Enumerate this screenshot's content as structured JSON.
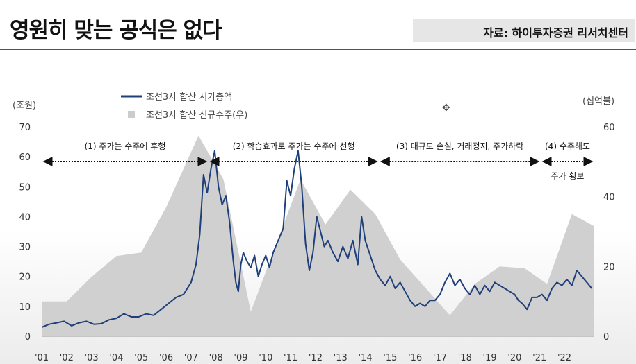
{
  "header": {
    "title": "영원히 맞는 공식은 없다",
    "source": "자료: 하이투자증권 리서치센터"
  },
  "chart_data": {
    "type": "line",
    "left_unit": "(조원)",
    "right_unit": "(십억불)",
    "legend": [
      {
        "name": "조선3사 합산 시가총액",
        "color": "#1f3f7a",
        "kind": "line"
      },
      {
        "name": "조선3사 합산 신규수주(우)",
        "color": "#cccccc",
        "kind": "area"
      }
    ],
    "x_labels": [
      "'01",
      "'02",
      "'03",
      "'04",
      "'05",
      "'06",
      "'07",
      "'08",
      "'09",
      "'10",
      "'11",
      "'12",
      "'13",
      "'14",
      "'15",
      "'16",
      "'17",
      "'18",
      "'19",
      "'20",
      "'21",
      "'22"
    ],
    "y_left_ticks": [
      "0",
      "10",
      "20",
      "30",
      "40",
      "50",
      "60",
      "70"
    ],
    "y_right_ticks": [
      "0",
      "20",
      "40",
      "60"
    ],
    "ylim_left": [
      0,
      70
    ],
    "ylim_right": [
      0,
      60
    ],
    "x_range": [
      2001.0,
      2023.2
    ],
    "area_series": {
      "name": "조선3사 합산 신규수주(우)",
      "x": [
        2001.0,
        2002.0,
        2003.0,
        2004.0,
        2005.0,
        2006.0,
        2007.3,
        2008.3,
        2009.4,
        2010.4,
        2011.4,
        2012.4,
        2013.4,
        2014.4,
        2015.4,
        2016.4,
        2017.4,
        2018.4,
        2019.4,
        2020.4,
        2021.3,
        2022.3,
        2023.2
      ],
      "y": [
        10.0,
        10.0,
        17.0,
        23.0,
        24.0,
        37.0,
        57.5,
        45.0,
        7.0,
        26.0,
        45.0,
        32.0,
        42.0,
        35.0,
        22.0,
        14.0,
        6.0,
        15.0,
        20.0,
        19.5,
        15.0,
        35.0,
        31.5
      ]
    },
    "line_series": {
      "name": "조선3사 합산 시가총액",
      "x": [
        2001.0,
        2001.3,
        2001.6,
        2001.9,
        2002.2,
        2002.5,
        2002.8,
        2003.1,
        2003.4,
        2003.7,
        2004.0,
        2004.3,
        2004.6,
        2004.9,
        2005.2,
        2005.5,
        2005.8,
        2006.1,
        2006.4,
        2006.7,
        2007.0,
        2007.2,
        2007.35,
        2007.5,
        2007.65,
        2007.8,
        2007.95,
        2008.1,
        2008.25,
        2008.4,
        2008.55,
        2008.7,
        2008.8,
        2008.9,
        2009.0,
        2009.1,
        2009.25,
        2009.4,
        2009.55,
        2009.7,
        2009.85,
        2010.0,
        2010.15,
        2010.3,
        2010.5,
        2010.7,
        2010.85,
        2011.0,
        2011.15,
        2011.3,
        2011.45,
        2011.6,
        2011.75,
        2011.9,
        2012.05,
        2012.2,
        2012.35,
        2012.5,
        2012.7,
        2012.9,
        2013.1,
        2013.3,
        2013.5,
        2013.7,
        2013.85,
        2014.0,
        2014.2,
        2014.4,
        2014.6,
        2014.8,
        2015.0,
        2015.2,
        2015.4,
        2015.6,
        2015.8,
        2016.0,
        2016.2,
        2016.4,
        2016.6,
        2016.8,
        2017.0,
        2017.2,
        2017.4,
        2017.6,
        2017.8,
        2018.0,
        2018.2,
        2018.4,
        2018.6,
        2018.8,
        2019.0,
        2019.2,
        2019.4,
        2019.6,
        2019.8,
        2020.0,
        2020.15,
        2020.3,
        2020.5,
        2020.7,
        2020.9,
        2021.1,
        2021.3,
        2021.5,
        2021.7,
        2021.9,
        2022.1,
        2022.3,
        2022.5,
        2022.7,
        2022.9,
        2023.1
      ],
      "y": [
        3,
        4,
        4.5,
        5,
        3.5,
        4.5,
        5,
        4,
        4.2,
        5.5,
        6,
        7.5,
        6.5,
        6.5,
        7.5,
        7,
        9,
        11,
        13,
        14,
        18,
        24,
        34,
        54,
        48,
        56,
        62,
        50,
        44,
        47,
        38,
        25,
        18,
        15,
        24,
        28,
        25,
        23,
        27,
        20,
        24,
        27,
        23,
        28,
        32,
        36,
        52,
        47,
        56,
        62,
        50,
        31,
        22,
        28,
        40,
        35,
        30,
        32,
        28,
        25,
        30,
        26,
        32,
        24,
        40,
        32,
        27,
        22,
        19,
        17,
        20,
        16,
        18,
        15,
        12,
        10,
        11,
        10,
        12,
        12,
        14,
        18,
        21,
        17,
        19,
        16,
        14,
        17,
        14,
        17,
        15,
        18,
        17,
        16,
        15,
        14,
        12,
        11,
        9,
        13,
        13,
        14,
        12,
        16,
        18,
        17,
        19,
        17,
        22,
        20,
        18,
        16
      ]
    },
    "annotations": [
      {
        "label": "(1) 주가는 수주에 후행",
        "from": 2001.0,
        "to": 2007.7
      },
      {
        "label": "(2) 학습효과로 주가는 수주에 선행",
        "from": 2007.7,
        "to": 2014.55
      },
      {
        "label": "(3) 대규모 손실, 거래정지, 주가하락",
        "from": 2014.55,
        "to": 2021.05
      },
      {
        "label": "(4) 수주해도",
        "from": 2021.05,
        "to": 2023.2
      }
    ],
    "extra_label": "주가 횡보"
  }
}
